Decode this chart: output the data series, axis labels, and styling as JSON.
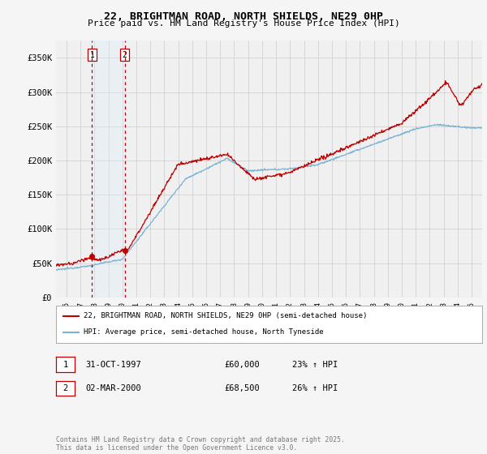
{
  "title_line1": "22, BRIGHTMAN ROAD, NORTH SHIELDS, NE29 0HP",
  "title_line2": "Price paid vs. HM Land Registry's House Price Index (HPI)",
  "ylabel_vals": [
    "£0",
    "£50K",
    "£100K",
    "£150K",
    "£200K",
    "£250K",
    "£300K",
    "£350K"
  ],
  "yticks": [
    0,
    50000,
    100000,
    150000,
    200000,
    250000,
    300000,
    350000
  ],
  "ylim": [
    0,
    375000
  ],
  "xlim_start": 1995.25,
  "xlim_end": 2025.75,
  "sale1_date": 1997.83,
  "sale1_price": 60000,
  "sale2_date": 2000.17,
  "sale2_price": 68500,
  "hpi_color": "#7ab3d4",
  "price_color": "#c00000",
  "vline_color": "#c00000",
  "vline_shade_color": "#ddeeff",
  "legend1_text": "22, BRIGHTMAN ROAD, NORTH SHIELDS, NE29 0HP (semi-detached house)",
  "legend2_text": "HPI: Average price, semi-detached house, North Tyneside",
  "table_row1": [
    "1",
    "31-OCT-1997",
    "£60,000",
    "23% ↑ HPI"
  ],
  "table_row2": [
    "2",
    "02-MAR-2000",
    "£68,500",
    "26% ↑ HPI"
  ],
  "footer_text": "Contains HM Land Registry data © Crown copyright and database right 2025.\nThis data is licensed under the Open Government Licence v3.0.",
  "background_color": "#f5f5f5",
  "grid_color": "#cccccc",
  "chart_bg": "#f0f0f0"
}
